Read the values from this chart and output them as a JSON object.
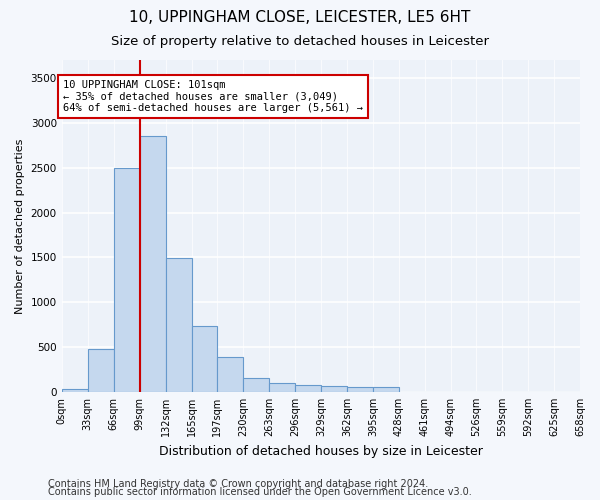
{
  "title_line1": "10, UPPINGHAM CLOSE, LEICESTER, LE5 6HT",
  "title_line2": "Size of property relative to detached houses in Leicester",
  "xlabel": "Distribution of detached houses by size in Leicester",
  "ylabel": "Number of detached properties",
  "bin_edges": [
    0,
    33,
    66,
    99,
    132,
    165,
    197,
    230,
    263,
    296,
    329,
    362,
    395,
    428,
    461,
    494,
    526,
    559,
    592,
    625,
    658
  ],
  "bar_heights": [
    30,
    480,
    2500,
    2850,
    1490,
    730,
    390,
    160,
    100,
    80,
    70,
    60,
    55,
    0,
    0,
    0,
    0,
    0,
    0,
    0
  ],
  "bar_color": "#c5d8ee",
  "bar_edge_color": "#6699cc",
  "vline_x": 99,
  "vline_color": "#cc0000",
  "annotation_text": "10 UPPINGHAM CLOSE: 101sqm\n← 35% of detached houses are smaller (3,049)\n64% of semi-detached houses are larger (5,561) →",
  "annotation_box_color": "#ffffff",
  "annotation_box_edge": "#cc0000",
  "ylim": [
    0,
    3700
  ],
  "yticks": [
    0,
    500,
    1000,
    1500,
    2000,
    2500,
    3000,
    3500
  ],
  "background_color": "#f4f7fc",
  "plot_bg_color": "#edf2f9",
  "footer_line1": "Contains HM Land Registry data © Crown copyright and database right 2024.",
  "footer_line2": "Contains public sector information licensed under the Open Government Licence v3.0.",
  "title1_fontsize": 11,
  "title2_fontsize": 9.5,
  "xlabel_fontsize": 9,
  "ylabel_fontsize": 8,
  "tick_fontsize": 7,
  "footer_fontsize": 7
}
